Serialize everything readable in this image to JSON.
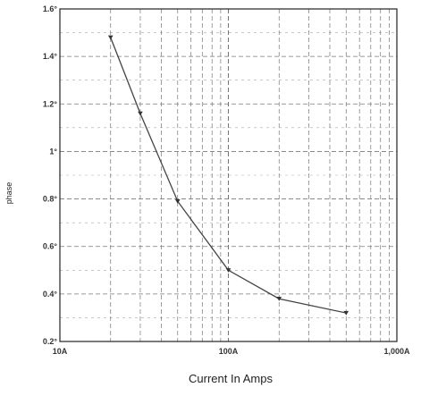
{
  "chart_data": {
    "type": "line",
    "title": "",
    "xlabel": "Current In Amps",
    "ylabel": "phase",
    "xscale": "log",
    "xlim": [
      10,
      1000
    ],
    "ylim": [
      0.2,
      1.6
    ],
    "xticks": [
      {
        "value": 10,
        "label": "10A"
      },
      {
        "value": 100,
        "label": "100A"
      },
      {
        "value": 1000,
        "label": "1,000A"
      }
    ],
    "yticks": [
      {
        "value": 0.2,
        "label": "0.2°"
      },
      {
        "value": 0.4,
        "label": "0.4°"
      },
      {
        "value": 0.6,
        "label": "0.6°"
      },
      {
        "value": 0.8,
        "label": "0.8°"
      },
      {
        "value": 1.0,
        "label": "1°"
      },
      {
        "value": 1.2,
        "label": "1.2°"
      },
      {
        "value": 1.4,
        "label": "1.4°"
      },
      {
        "value": 1.6,
        "label": "1.6°"
      }
    ],
    "grid": true,
    "series": [
      {
        "x": [
          20,
          30,
          50,
          100,
          200,
          500
        ],
        "y": [
          1.48,
          1.16,
          0.79,
          0.5,
          0.38,
          0.32
        ]
      }
    ],
    "colors": {
      "line": "#444444",
      "marker": "#333333",
      "grid": "#777777",
      "axis": "#222222"
    }
  }
}
